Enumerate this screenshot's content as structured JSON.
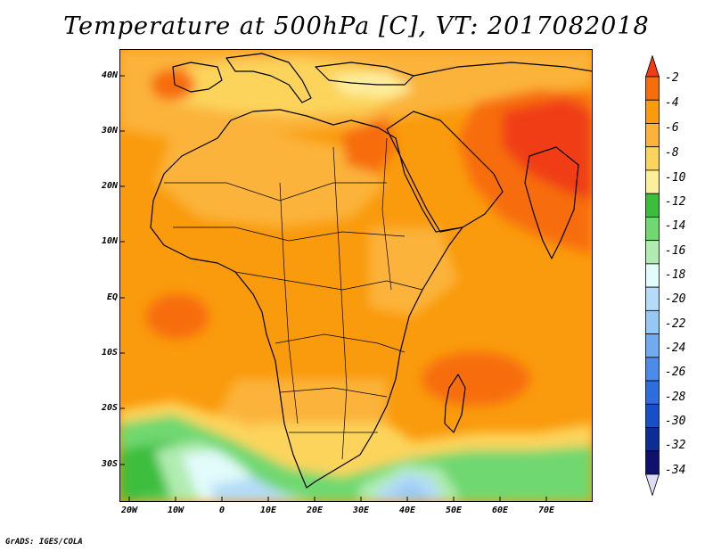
{
  "title": "Temperature at 500hPa [C], VT: 2017082018",
  "credit": "GrADS: IGES/COLA",
  "map": {
    "lat_ticks": [
      "40N",
      "30N",
      "20N",
      "10N",
      "EQ",
      "10S",
      "20S",
      "30S"
    ],
    "lon_ticks": [
      "20W",
      "10W",
      "0",
      "10E",
      "20E",
      "30E",
      "40E",
      "50E",
      "60E",
      "70E"
    ]
  },
  "colorbar": {
    "labels": [
      "-2",
      "-4",
      "-6",
      "-8",
      "-10",
      "-12",
      "-14",
      "-16",
      "-18",
      "-20",
      "-22",
      "-24",
      "-26",
      "-28",
      "-30",
      "-32",
      "-34"
    ],
    "colors": [
      "#f03c14",
      "#f76d0c",
      "#fa9a0d",
      "#fbb33a",
      "#fcd45b",
      "#fdee9c",
      "#3cbe3c",
      "#70d870",
      "#b0ecb0",
      "#e2fbfb",
      "#b4dcf8",
      "#96c8f5",
      "#72aaf0",
      "#4b8ceb",
      "#2c6ee0",
      "#1650c8",
      "#0c2d96",
      "#101070",
      "#dcdcf5"
    ]
  }
}
